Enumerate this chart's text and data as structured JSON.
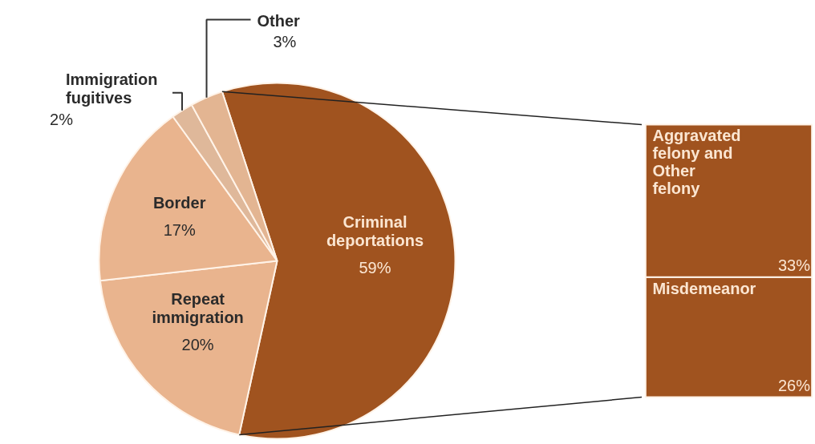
{
  "chart_data": [
    {
      "type": "pie",
      "categories": [
        "Criminal deportations",
        "Repeat immigration",
        "Border",
        "Immigration fugitives",
        "Other"
      ],
      "values": [
        59,
        20,
        17,
        2,
        3
      ],
      "value_labels": [
        "59%",
        "20%",
        "17%",
        "2%",
        "3%"
      ],
      "colors": [
        "#a0531f",
        "#e9b48e",
        "#e9b48e",
        "#dfb89a",
        "#e3b592"
      ]
    },
    {
      "type": "bar",
      "stacked": true,
      "categories": [
        null
      ],
      "series": [
        {
          "name": "Misdemeanor",
          "color": "#a0531f",
          "values": [
            26
          ],
          "value_labels": [
            "26%"
          ]
        },
        {
          "name": "Aggravated felony and Other felony",
          "color": "#a0531f",
          "values": [
            33
          ],
          "value_labels": [
            "33%"
          ]
        }
      ]
    }
  ]
}
